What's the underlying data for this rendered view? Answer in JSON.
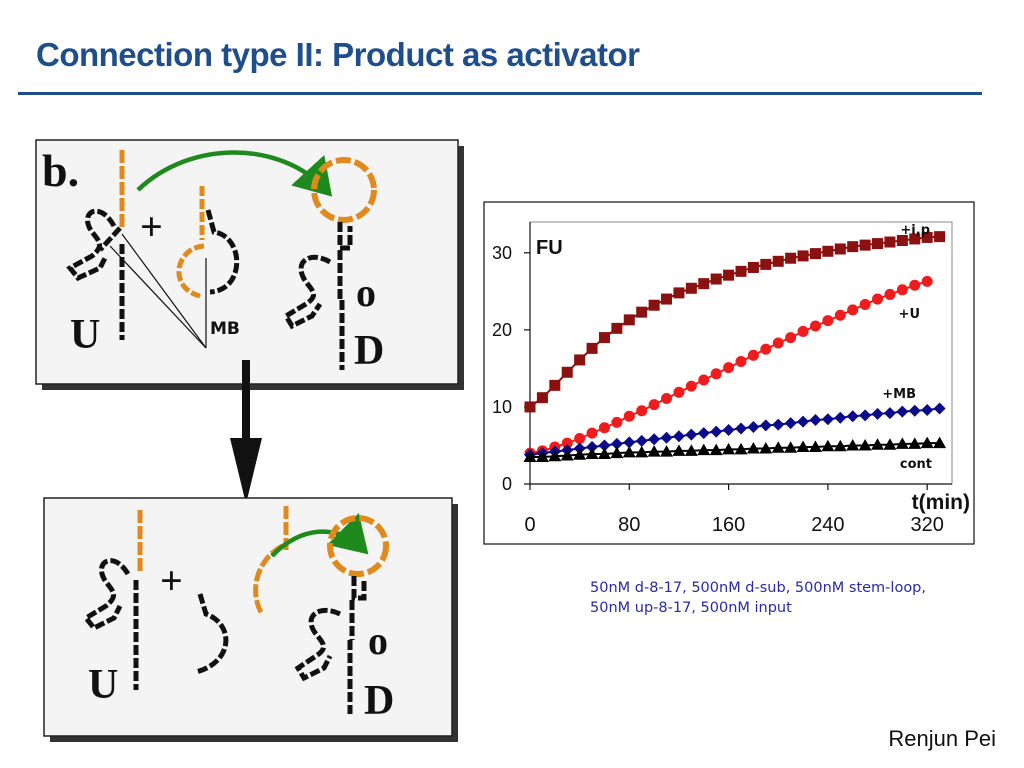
{
  "slide": {
    "title": "Connection type II: Product as activator",
    "author": "Renjun Pei",
    "caption": "50nM d-8-17, 500nM d-sub, 500nM stem-loop, 50nM up-8-17, 500nM input"
  },
  "diagram": {
    "panel_label": "b.",
    "plus": "+",
    "label_U": "U",
    "label_MB": "MB",
    "label_o": "o",
    "label_D": "D",
    "colors": {
      "strand": "#111111",
      "orange": "#e08a1e",
      "arrow": "#1e8a1e",
      "panel_bg": "#f4f4f4"
    }
  },
  "chart_data": {
    "type": "scatter",
    "title": "",
    "ylabel": "FU",
    "xlabel": "t(min)",
    "xlim": [
      0,
      340
    ],
    "ylim": [
      0,
      34
    ],
    "xticks": [
      0,
      80,
      160,
      240,
      320
    ],
    "yticks": [
      0,
      10,
      20,
      30
    ],
    "series": [
      {
        "name": "+i,p",
        "color": "#8b1010",
        "marker": "square",
        "x": [
          0,
          10,
          20,
          30,
          40,
          50,
          60,
          70,
          80,
          90,
          100,
          110,
          120,
          130,
          140,
          150,
          160,
          170,
          180,
          190,
          200,
          210,
          220,
          230,
          240,
          250,
          260,
          270,
          280,
          290,
          300,
          310,
          320,
          330
        ],
        "y": [
          10,
          11.2,
          12.8,
          14.5,
          16.1,
          17.6,
          19,
          20.2,
          21.3,
          22.3,
          23.2,
          24,
          24.8,
          25.4,
          26,
          26.6,
          27.1,
          27.6,
          28.1,
          28.5,
          28.9,
          29.3,
          29.6,
          29.9,
          30.2,
          30.5,
          30.8,
          31,
          31.2,
          31.4,
          31.6,
          31.8,
          32,
          32.1
        ]
      },
      {
        "name": "+U",
        "color": "#ee1c1c",
        "marker": "circle",
        "x": [
          0,
          10,
          20,
          30,
          40,
          50,
          60,
          70,
          80,
          90,
          100,
          110,
          120,
          130,
          140,
          150,
          160,
          170,
          180,
          190,
          200,
          210,
          220,
          230,
          240,
          250,
          260,
          270,
          280,
          290,
          300,
          310,
          320
        ],
        "y": [
          4,
          4.3,
          4.8,
          5.3,
          5.9,
          6.6,
          7.3,
          8,
          8.8,
          9.5,
          10.3,
          11.1,
          11.9,
          12.7,
          13.5,
          14.3,
          15.1,
          15.9,
          16.7,
          17.5,
          18.3,
          19,
          19.8,
          20.5,
          21.2,
          21.9,
          22.6,
          23.3,
          24,
          24.6,
          25.2,
          25.8,
          26.3
        ]
      },
      {
        "name": "+MB",
        "color": "#0a0a8a",
        "marker": "diamond",
        "x": [
          0,
          10,
          20,
          30,
          40,
          50,
          60,
          70,
          80,
          90,
          100,
          110,
          120,
          130,
          140,
          150,
          160,
          170,
          180,
          190,
          200,
          210,
          220,
          230,
          240,
          250,
          260,
          270,
          280,
          290,
          300,
          310,
          320,
          330
        ],
        "y": [
          3.8,
          4,
          4.2,
          4.4,
          4.6,
          4.8,
          5,
          5.2,
          5.4,
          5.6,
          5.8,
          6,
          6.2,
          6.4,
          6.6,
          6.8,
          7,
          7.2,
          7.4,
          7.6,
          7.7,
          7.9,
          8.1,
          8.3,
          8.4,
          8.6,
          8.8,
          8.9,
          9.1,
          9.2,
          9.4,
          9.5,
          9.6,
          9.8
        ]
      },
      {
        "name": "cont",
        "color": "#000000",
        "marker": "triangle",
        "x": [
          0,
          10,
          20,
          30,
          40,
          50,
          60,
          70,
          80,
          90,
          100,
          110,
          120,
          130,
          140,
          150,
          160,
          170,
          180,
          190,
          200,
          210,
          220,
          230,
          240,
          250,
          260,
          270,
          280,
          290,
          300,
          310,
          320,
          330
        ],
        "y": [
          3.5,
          3.5,
          3.6,
          3.7,
          3.8,
          3.9,
          3.9,
          4,
          4.1,
          4.1,
          4.2,
          4.2,
          4.3,
          4.3,
          4.4,
          4.4,
          4.5,
          4.5,
          4.6,
          4.6,
          4.7,
          4.7,
          4.8,
          4.8,
          4.9,
          4.9,
          5,
          5,
          5.1,
          5.1,
          5.2,
          5.2,
          5.3,
          5.3
        ]
      }
    ],
    "grid": false
  }
}
